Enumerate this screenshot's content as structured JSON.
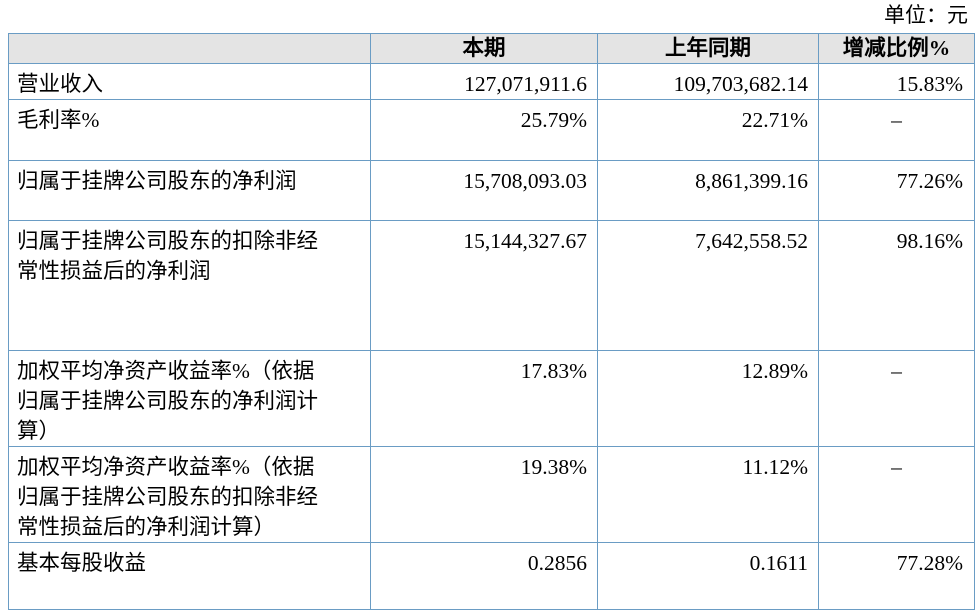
{
  "meta": {
    "unit_label": "单位：元"
  },
  "table": {
    "columns": {
      "label": "",
      "current": "本期",
      "prior": "上年同期",
      "change": "增减比例%"
    },
    "rows": [
      {
        "label": "营业收入",
        "current": "127,071,911.6",
        "prior": "109,703,682.14",
        "change": "15.83%"
      },
      {
        "label": "毛利率%",
        "current": "25.79%",
        "prior": "22.71%",
        "change": "–"
      },
      {
        "label": "归属于挂牌公司股东的净利润",
        "current": "15,708,093.03",
        "prior": "8,861,399.16",
        "change": "77.26%"
      },
      {
        "label": "归属于挂牌公司股东的扣除非经常性损益后的净利润",
        "current": "15,144,327.67",
        "prior": "7,642,558.52",
        "change": "98.16%"
      },
      {
        "label": "加权平均净资产收益率%（依据归属于挂牌公司股东的净利润计算）",
        "current": "17.83%",
        "prior": "12.89%",
        "change": "–"
      },
      {
        "label": "加权平均净资产收益率%（依据归属于挂牌公司股东的扣除非经常性损益后的净利润计算）",
        "current": "19.38%",
        "prior": "11.12%",
        "change": "–"
      },
      {
        "label": "基本每股收益",
        "current": "0.2856",
        "prior": "0.1611",
        "change": "77.28%"
      }
    ]
  },
  "colors": {
    "border": "#6a9cc4",
    "header_bg": "#e4e4e4",
    "text": "#000000",
    "page_bg": "#ffffff"
  }
}
